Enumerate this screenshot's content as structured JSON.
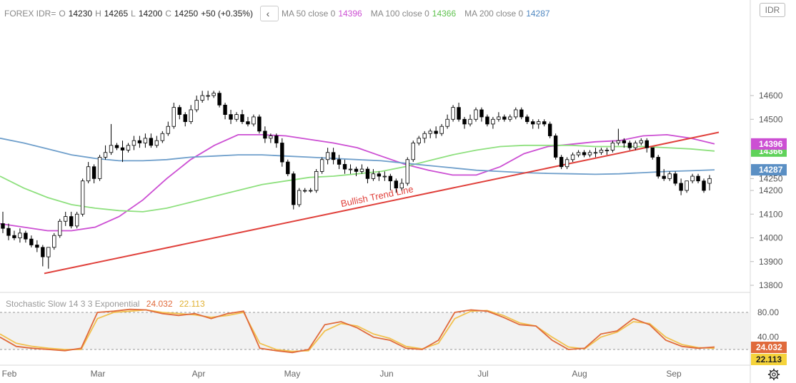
{
  "header": {
    "symbol": "FOREX IDR=",
    "open_label": "O",
    "open": "14230",
    "high_label": "H",
    "high": "14265",
    "low_label": "L",
    "low": "14200",
    "close_label": "C",
    "close": "14250",
    "change": "+50 (+0.35%)",
    "ma50_label": "MA 50 close 0",
    "ma50_value": "14396",
    "ma100_label": "MA 100 close 0",
    "ma100_value": "14366",
    "ma200_label": "MA 200 close 0",
    "ma200_value": "14287",
    "currency_button": "IDR"
  },
  "oscillator": {
    "label": "Stochastic Slow 14 3 3 Exponential",
    "k_value": "24.032",
    "d_value": "22.113"
  },
  "colors": {
    "ma50": "#cc4fd3",
    "ma100": "#8ee07e",
    "ma200": "#6f9fcb",
    "trendline": "#e0413c",
    "stoch_k": "#e06a3b",
    "stoch_d": "#f2c14e",
    "up_candle": "#ffffff",
    "down_candle": "#000000"
  },
  "chart_data": [
    {
      "type": "candlestick",
      "x_labels": [
        "Feb",
        "Mar",
        "Apr",
        "May",
        "Jun",
        "Jul",
        "Aug",
        "Sep"
      ],
      "y_ticks": [
        13800,
        13900,
        14000,
        14100,
        14200,
        14250,
        14287,
        14366,
        14396,
        14500,
        14600
      ],
      "ylim": [
        13780,
        14690
      ],
      "grid": false,
      "last_bar": {
        "open": 14230,
        "high": 14265,
        "low": 14200,
        "close": 14250
      },
      "trendline_label": "Bullish Trend Line",
      "series": [
        {
          "name": "MA 50 close 0",
          "values": [
            14060,
            14045,
            14030,
            14030,
            14045,
            14090,
            14160,
            14250,
            14330,
            14390,
            14435,
            14435,
            14430,
            14415,
            14400,
            14380,
            14345,
            14310,
            14285,
            14265,
            14265,
            14300,
            14355,
            14385,
            14395,
            14405,
            14410,
            14430,
            14435,
            14420,
            14396
          ]
        },
        {
          "name": "MA 100 close 0",
          "values": [
            14260,
            14210,
            14170,
            14140,
            14125,
            14115,
            14110,
            14125,
            14150,
            14175,
            14200,
            14225,
            14240,
            14255,
            14260,
            14270,
            14280,
            14300,
            14325,
            14350,
            14370,
            14385,
            14390,
            14390,
            14390,
            14385,
            14385,
            14385,
            14380,
            14375,
            14366
          ]
        },
        {
          "name": "MA 200 close 0",
          "values": [
            14420,
            14400,
            14375,
            14350,
            14335,
            14325,
            14325,
            14330,
            14340,
            14345,
            14350,
            14350,
            14345,
            14340,
            14335,
            14330,
            14325,
            14315,
            14305,
            14295,
            14285,
            14280,
            14275,
            14272,
            14270,
            14268,
            14270,
            14275,
            14280,
            14283,
            14287
          ]
        },
        {
          "name": "Bullish Trend Line",
          "values": [
            13850,
            14445
          ]
        }
      ],
      "candles": [
        [
          14060,
          14110,
          14020,
          14040
        ],
        [
          14040,
          14060,
          13990,
          14010
        ],
        [
          14010,
          14030,
          13990,
          14000
        ],
        [
          14000,
          14040,
          13980,
          14020
        ],
        [
          14020,
          14030,
          13980,
          13995
        ],
        [
          13995,
          14010,
          13960,
          13970
        ],
        [
          13970,
          13990,
          13940,
          13960
        ],
        [
          13960,
          13970,
          13880,
          13920
        ],
        [
          13920,
          13960,
          13870,
          13960
        ],
        [
          13960,
          14020,
          13950,
          14010
        ],
        [
          14010,
          14080,
          14000,
          14070
        ],
        [
          14070,
          14110,
          14050,
          14090
        ],
        [
          14090,
          14110,
          14040,
          14050
        ],
        [
          14050,
          14110,
          14040,
          14100
        ],
        [
          14100,
          14250,
          14090,
          14240
        ],
        [
          14240,
          14320,
          14230,
          14300
        ],
        [
          14300,
          14310,
          14230,
          14250
        ],
        [
          14250,
          14350,
          14240,
          14340
        ],
        [
          14340,
          14390,
          14330,
          14360
        ],
        [
          14360,
          14480,
          14350,
          14390
        ],
        [
          14390,
          14400,
          14370,
          14380
        ],
        [
          14380,
          14410,
          14320,
          14370
        ],
        [
          14370,
          14400,
          14360,
          14390
        ],
        [
          14390,
          14430,
          14370,
          14410
        ],
        [
          14410,
          14430,
          14380,
          14400
        ],
        [
          14400,
          14440,
          14380,
          14420
        ],
        [
          14420,
          14440,
          14380,
          14390
        ],
        [
          14390,
          14430,
          14380,
          14410
        ],
        [
          14410,
          14450,
          14400,
          14440
        ],
        [
          14440,
          14490,
          14430,
          14470
        ],
        [
          14470,
          14570,
          14460,
          14550
        ],
        [
          14550,
          14560,
          14500,
          14520
        ],
        [
          14520,
          14530,
          14470,
          14490
        ],
        [
          14490,
          14560,
          14480,
          14540
        ],
        [
          14540,
          14600,
          14530,
          14580
        ],
        [
          14580,
          14620,
          14570,
          14600
        ],
        [
          14600,
          14620,
          14580,
          14600
        ],
        [
          14600,
          14620,
          14590,
          14610
        ],
        [
          14610,
          14620,
          14550,
          14560
        ],
        [
          14560,
          14570,
          14500,
          14520
        ],
        [
          14520,
          14540,
          14480,
          14500
        ],
        [
          14500,
          14530,
          14490,
          14520
        ],
        [
          14520,
          14540,
          14480,
          14490
        ],
        [
          14490,
          14510,
          14470,
          14480
        ],
        [
          14480,
          14520,
          14470,
          14510
        ],
        [
          14510,
          14520,
          14440,
          14450
        ],
        [
          14450,
          14470,
          14400,
          14420
        ],
        [
          14420,
          14440,
          14400,
          14430
        ],
        [
          14430,
          14440,
          14380,
          14400
        ],
        [
          14400,
          14420,
          14300,
          14320
        ],
        [
          14320,
          14330,
          14260,
          14270
        ],
        [
          14270,
          14280,
          14120,
          14140
        ],
        [
          14140,
          14210,
          14130,
          14200
        ],
        [
          14200,
          14210,
          14190,
          14200
        ],
        [
          14200,
          14210,
          14190,
          14200
        ],
        [
          14200,
          14290,
          14190,
          14280
        ],
        [
          14280,
          14340,
          14270,
          14330
        ],
        [
          14330,
          14380,
          14310,
          14360
        ],
        [
          14360,
          14380,
          14310,
          14330
        ],
        [
          14330,
          14350,
          14290,
          14310
        ],
        [
          14310,
          14330,
          14270,
          14290
        ],
        [
          14290,
          14310,
          14270,
          14290
        ],
        [
          14290,
          14300,
          14260,
          14280
        ],
        [
          14280,
          14310,
          14270,
          14290
        ],
        [
          14290,
          14300,
          14230,
          14250
        ],
        [
          14250,
          14290,
          14240,
          14270
        ],
        [
          14270,
          14280,
          14240,
          14260
        ],
        [
          14260,
          14280,
          14240,
          14260
        ],
        [
          14260,
          14270,
          14200,
          14240
        ],
        [
          14240,
          14250,
          14190,
          14210
        ],
        [
          14210,
          14250,
          14200,
          14230
        ],
        [
          14230,
          14340,
          14220,
          14330
        ],
        [
          14330,
          14410,
          14320,
          14400
        ],
        [
          14400,
          14430,
          14390,
          14420
        ],
        [
          14420,
          14450,
          14400,
          14440
        ],
        [
          14440,
          14460,
          14420,
          14450
        ],
        [
          14450,
          14470,
          14420,
          14440
        ],
        [
          14440,
          14480,
          14430,
          14470
        ],
        [
          14470,
          14520,
          14460,
          14500
        ],
        [
          14500,
          14560,
          14490,
          14550
        ],
        [
          14550,
          14570,
          14490,
          14500
        ],
        [
          14500,
          14510,
          14460,
          14480
        ],
        [
          14480,
          14520,
          14470,
          14500
        ],
        [
          14500,
          14550,
          14490,
          14540
        ],
        [
          14540,
          14550,
          14490,
          14510
        ],
        [
          14510,
          14520,
          14470,
          14480
        ],
        [
          14480,
          14510,
          14460,
          14500
        ],
        [
          14500,
          14530,
          14490,
          14510
        ],
        [
          14510,
          14520,
          14490,
          14500
        ],
        [
          14500,
          14520,
          14490,
          14510
        ],
        [
          14510,
          14550,
          14500,
          14540
        ],
        [
          14540,
          14550,
          14500,
          14510
        ],
        [
          14510,
          14520,
          14480,
          14490
        ],
        [
          14490,
          14500,
          14460,
          14480
        ],
        [
          14480,
          14500,
          14460,
          14490
        ],
        [
          14490,
          14500,
          14470,
          14480
        ],
        [
          14480,
          14490,
          14420,
          14430
        ],
        [
          14430,
          14440,
          14330,
          14340
        ],
        [
          14340,
          14350,
          14290,
          14300
        ],
        [
          14300,
          14340,
          14290,
          14330
        ],
        [
          14330,
          14360,
          14320,
          14350
        ],
        [
          14350,
          14370,
          14340,
          14360
        ],
        [
          14360,
          14370,
          14340,
          14350
        ],
        [
          14350,
          14370,
          14340,
          14360
        ],
        [
          14360,
          14380,
          14340,
          14360
        ],
        [
          14360,
          14380,
          14350,
          14370
        ],
        [
          14370,
          14380,
          14350,
          14370
        ],
        [
          14370,
          14410,
          14360,
          14400
        ],
        [
          14400,
          14460,
          14390,
          14410
        ],
        [
          14410,
          14420,
          14380,
          14400
        ],
        [
          14400,
          14410,
          14370,
          14380
        ],
        [
          14380,
          14410,
          14370,
          14400
        ],
        [
          14400,
          14420,
          14390,
          14410
        ],
        [
          14410,
          14420,
          14360,
          14380
        ],
        [
          14380,
          14380,
          14330,
          14340
        ],
        [
          14340,
          14350,
          14250,
          14260
        ],
        [
          14260,
          14290,
          14240,
          14250
        ],
        [
          14250,
          14280,
          14240,
          14270
        ],
        [
          14270,
          14280,
          14220,
          14230
        ],
        [
          14230,
          14250,
          14180,
          14200
        ],
        [
          14200,
          14240,
          14190,
          14240
        ],
        [
          14240,
          14270,
          14230,
          14260
        ],
        [
          14260,
          14270,
          14230,
          14240
        ],
        [
          14240,
          14250,
          14190,
          14200
        ],
        [
          14230,
          14265,
          14200,
          14250
        ]
      ]
    },
    {
      "type": "line",
      "title": "Stochastic Slow 14 3 3 Exponential",
      "y_ticks": [
        40,
        80
      ],
      "ylim": [
        0,
        100
      ],
      "reference_lines": [
        20,
        80
      ],
      "series": [
        {
          "name": "%K",
          "values": [
            40,
            25,
            22,
            20,
            18,
            22,
            80,
            82,
            85,
            84,
            78,
            75,
            78,
            70,
            78,
            82,
            22,
            18,
            15,
            20,
            60,
            65,
            55,
            40,
            35,
            22,
            20,
            35,
            80,
            84,
            82,
            72,
            60,
            58,
            35,
            20,
            22,
            45,
            50,
            70,
            60,
            35,
            25,
            22,
            24
          ]
        },
        {
          "name": "%D",
          "values": [
            45,
            30,
            25,
            22,
            20,
            20,
            70,
            80,
            82,
            84,
            80,
            78,
            76,
            72,
            75,
            80,
            30,
            20,
            17,
            18,
            50,
            62,
            58,
            45,
            38,
            25,
            21,
            30,
            70,
            82,
            83,
            75,
            63,
            58,
            40,
            24,
            21,
            40,
            48,
            65,
            62,
            40,
            28,
            23,
            22
          ]
        }
      ]
    }
  ]
}
